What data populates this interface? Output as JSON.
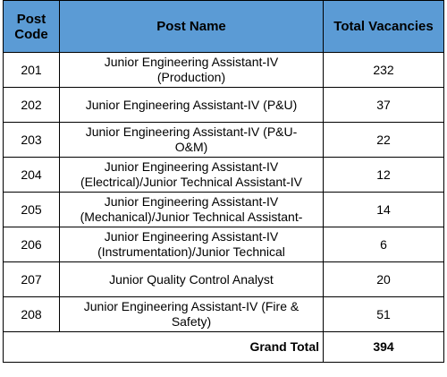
{
  "table": {
    "header": [
      "Post Code",
      "Post Name",
      "Total Vacancies"
    ],
    "rows": [
      {
        "code": "201",
        "name": [
          "Junior Engineering Assistant-IV",
          "(Production)"
        ],
        "vacancies": 232
      },
      {
        "code": "202",
        "name": [
          "Junior Engineering Assistant-IV (P&U)"
        ],
        "vacancies": 37
      },
      {
        "code": "203",
        "name": [
          "Junior Engineering Assistant-IV (P&U-",
          "O&M)"
        ],
        "vacancies": 22
      },
      {
        "code": "204",
        "name": [
          "Junior Engineering Assistant-IV",
          "(Electrical)/Junior Technical Assistant-IV"
        ],
        "vacancies": 12
      },
      {
        "code": "205",
        "name": [
          "Junior Engineering Assistant-IV",
          "(Mechanical)/Junior Technical Assistant-"
        ],
        "vacancies": 14
      },
      {
        "code": "206",
        "name": [
          "Junior Engineering Assistant-IV",
          "(Instrumentation)/Junior Technical"
        ],
        "vacancies": 6
      },
      {
        "code": "207",
        "name": [
          "Junior Quality Control Analyst"
        ],
        "vacancies": 20
      },
      {
        "code": "208",
        "name": [
          "Junior Engineering Assistant-IV (Fire &",
          "Safety)"
        ],
        "vacancies": 51
      }
    ],
    "total_label": "Grand Total",
    "total": 394
  }
}
